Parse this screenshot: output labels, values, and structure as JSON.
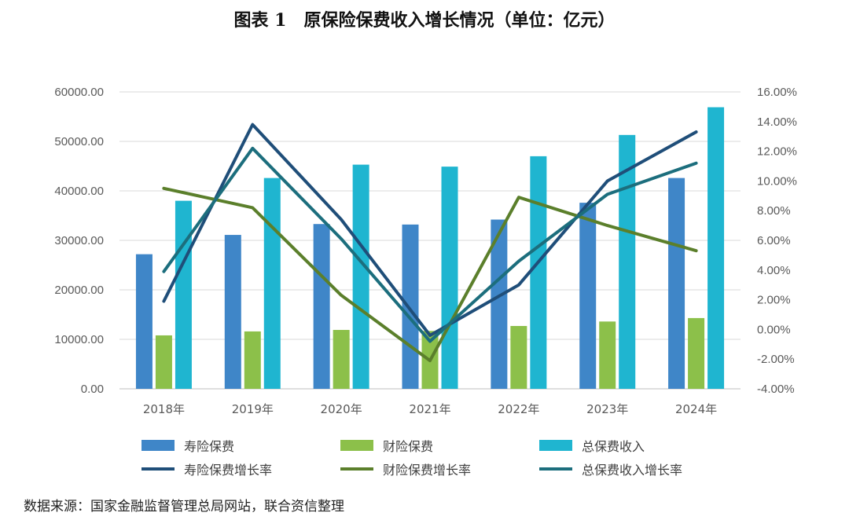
{
  "title": {
    "prefix": "图表 1",
    "text": "原保险保费收入增长情况（单位：亿元）"
  },
  "chart_data": {
    "type": "bar",
    "categories": [
      "2018年",
      "2019年",
      "2020年",
      "2021年",
      "2022年",
      "2023年",
      "2024年"
    ],
    "series": [
      {
        "name": "寿险保费",
        "kind": "bar",
        "axis": "left",
        "color": "#3f86c8",
        "values": [
          27200,
          31100,
          33300,
          33200,
          34200,
          37600,
          42600
        ]
      },
      {
        "name": "财险保费",
        "kind": "bar",
        "axis": "left",
        "color": "#8cc04a",
        "values": [
          10800,
          11600,
          11900,
          11700,
          12700,
          13600,
          14300
        ]
      },
      {
        "name": "总保费收入",
        "kind": "bar",
        "axis": "left",
        "color": "#1fb5d0",
        "values": [
          38000,
          42600,
          45300,
          44900,
          47000,
          51300,
          56900
        ]
      },
      {
        "name": "寿险保费增长率",
        "kind": "line",
        "axis": "right",
        "color": "#1f4e79",
        "values": [
          1.9,
          13.8,
          7.4,
          -0.4,
          3.0,
          10.0,
          13.3
        ]
      },
      {
        "name": "财险保费增长率",
        "kind": "line",
        "axis": "right",
        "color": "#5b7f2b",
        "values": [
          9.5,
          8.2,
          2.3,
          -2.1,
          8.9,
          7.0,
          5.3
        ]
      },
      {
        "name": "总保费收入增长率",
        "kind": "line",
        "axis": "right",
        "color": "#1c6e7d",
        "values": [
          3.9,
          12.2,
          6.1,
          -0.8,
          4.6,
          9.1,
          11.2
        ]
      }
    ],
    "ylim": [
      0,
      60000
    ],
    "yticks": [
      "0.00",
      "10000.00",
      "20000.00",
      "30000.00",
      "40000.00",
      "50000.00",
      "60000.00"
    ],
    "y2lim": [
      -4,
      16
    ],
    "y2ticks": [
      "-4.00%",
      "-2.00%",
      "0.00%",
      "2.00%",
      "4.00%",
      "6.00%",
      "8.00%",
      "10.00%",
      "12.00%",
      "14.00%",
      "16.00%"
    ],
    "grid": true,
    "legend": "bottom"
  },
  "source": "数据来源：国家金融监督管理总局网站，联合资信整理"
}
